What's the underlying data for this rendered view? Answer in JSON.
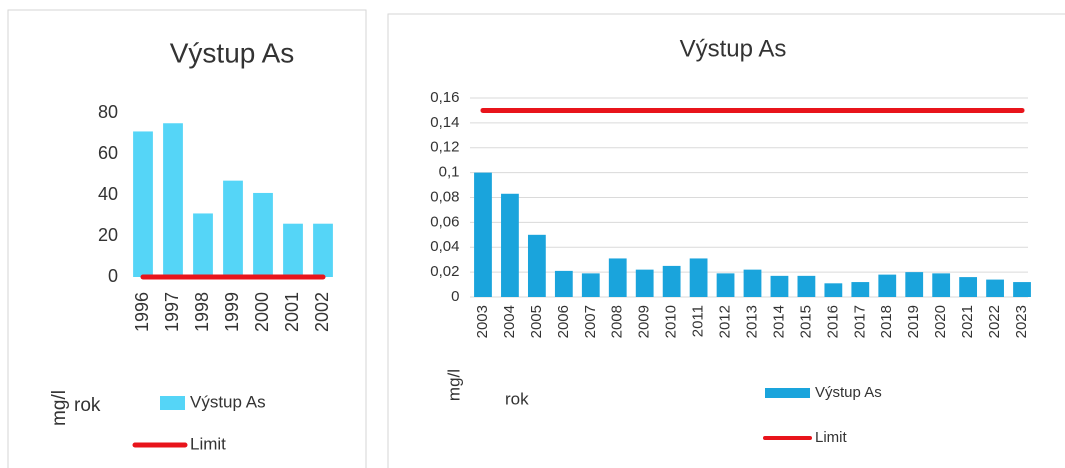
{
  "chart_data": [
    {
      "type": "bar",
      "title": "Výstup As",
      "x_label": "rok",
      "y_label": "mg/l",
      "categories": [
        "1996",
        "1997",
        "1998",
        "1999",
        "2000",
        "2001",
        "2002"
      ],
      "series": [
        {
          "name": "Výstup As",
          "type": "bar",
          "color": "#55d5f7",
          "values": [
            71,
            75,
            31,
            47,
            41,
            26,
            26
          ]
        },
        {
          "name": "Limit",
          "type": "line",
          "color": "#e8141b",
          "values": [
            0,
            0,
            0,
            0,
            0,
            0,
            0
          ]
        }
      ],
      "ylim": [
        0,
        80
      ],
      "yticks": [
        0,
        20,
        40,
        60,
        80
      ],
      "grid": false
    },
    {
      "type": "bar",
      "title": "Výstup As",
      "x_label": "rok",
      "y_label": "mg/l",
      "categories": [
        "2003",
        "2004",
        "2005",
        "2006",
        "2007",
        "2008",
        "2009",
        "2010",
        "2011",
        "2012",
        "2013",
        "2014",
        "2015",
        "2016",
        "2017",
        "2018",
        "2019",
        "2020",
        "2021",
        "2022",
        "2023"
      ],
      "series": [
        {
          "name": "Výstup As",
          "type": "bar",
          "color": "#1aa4dc",
          "values": [
            0.1,
            0.083,
            0.05,
            0.021,
            0.019,
            0.031,
            0.022,
            0.025,
            0.031,
            0.019,
            0.022,
            0.017,
            0.017,
            0.011,
            0.012,
            0.018,
            0.02,
            0.019,
            0.016,
            0.014,
            0.012
          ]
        },
        {
          "name": "Limit",
          "type": "line",
          "color": "#e8141b",
          "values": [
            0.15,
            0.15,
            0.15,
            0.15,
            0.15,
            0.15,
            0.15,
            0.15,
            0.15,
            0.15,
            0.15,
            0.15,
            0.15,
            0.15,
            0.15,
            0.15,
            0.15,
            0.15,
            0.15,
            0.15,
            0.15
          ]
        }
      ],
      "ylim": [
        0,
        0.16
      ],
      "yticks": [
        0,
        {
          "value": 0.02,
          "label": "0,02"
        },
        {
          "value": 0.04,
          "label": "0,04"
        },
        {
          "value": 0.06,
          "label": "0,06"
        },
        {
          "value": 0.08,
          "label": "0,08"
        },
        {
          "value": 0.1,
          "label": "0,1"
        },
        {
          "value": 0.12,
          "label": "0,12"
        },
        {
          "value": 0.14,
          "label": "0,14"
        },
        {
          "value": 0.16,
          "label": "0,16"
        }
      ],
      "grid": true
    }
  ]
}
